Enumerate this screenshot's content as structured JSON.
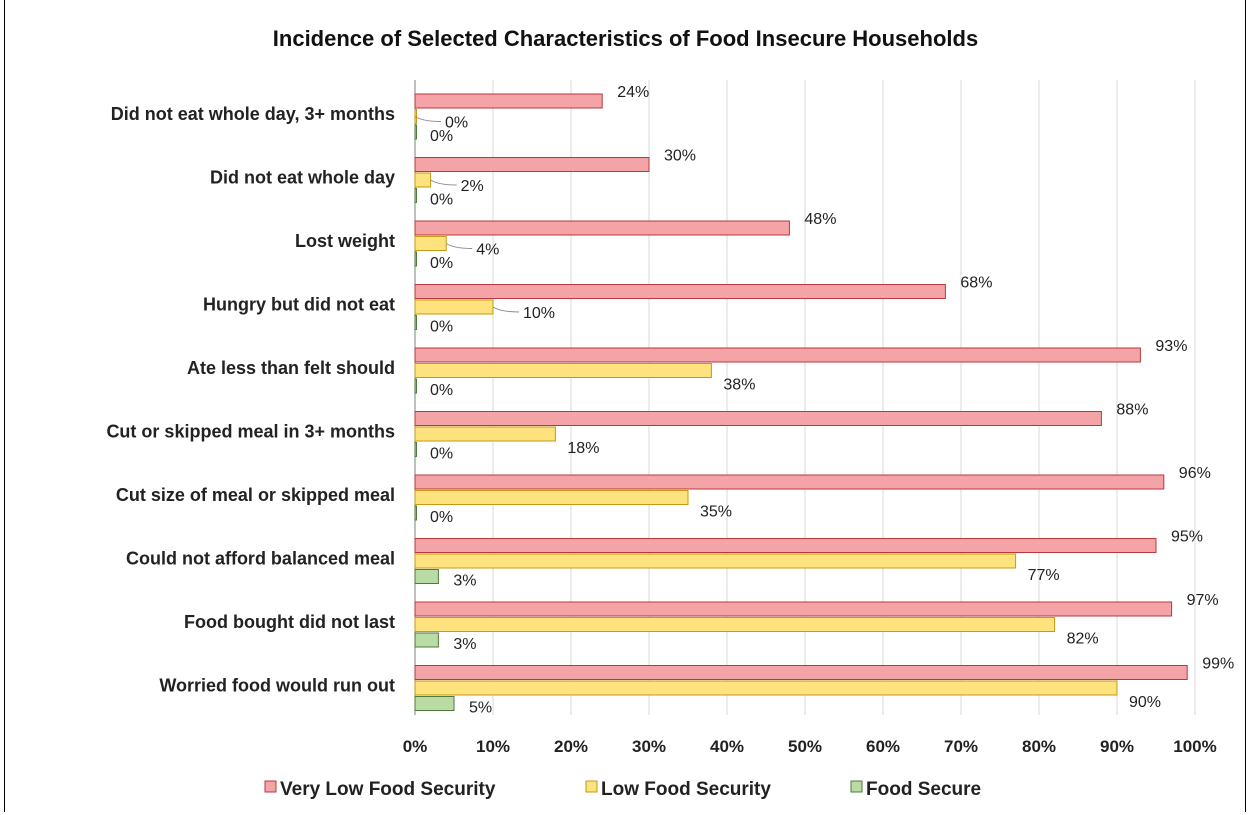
{
  "chart_data": {
    "type": "bar",
    "orientation": "horizontal",
    "title": "Incidence of Selected Characteristics of Food Insecure Households",
    "categories": [
      "Did not eat whole day, 3+ months",
      "Did not eat whole day",
      "Lost weight",
      "Hungry but did not eat",
      "Ate less than felt should",
      "Cut or skipped meal in 3+ months",
      "Cut size of meal or skipped meal",
      "Could not afford balanced meal",
      "Food bought did not last",
      "Worried food would run out"
    ],
    "series": [
      {
        "name": "Very Low Food Security",
        "color": "#f4a3a6",
        "stroke": "#b8383c",
        "values": [
          24,
          30,
          48,
          68,
          93,
          88,
          96,
          95,
          97,
          99
        ],
        "labels": [
          "24%",
          "30%",
          "48%",
          "68%",
          "93%",
          "88%",
          "96%",
          "95%",
          "97%",
          "99%"
        ]
      },
      {
        "name": "Low Food Security",
        "color": "#fde27d",
        "stroke": "#c79a15",
        "values": [
          0,
          2,
          4,
          10,
          38,
          18,
          35,
          77,
          82,
          90
        ],
        "labels": [
          "0%",
          "2%",
          "4%",
          "10%",
          "38%",
          "18%",
          "35%",
          "77%",
          "82%",
          "90%"
        ]
      },
      {
        "name": "Food Secure",
        "color": "#b9dca4",
        "stroke": "#4f7a3a",
        "values": [
          0,
          0,
          0,
          0,
          0,
          0,
          0,
          3,
          3,
          5
        ],
        "labels": [
          "0%",
          "0%",
          "0%",
          "0%",
          "0%",
          "0%",
          "0%",
          "3%",
          "3%",
          "5%"
        ]
      }
    ],
    "xlim": [
      0,
      100
    ],
    "xticks": [
      "0%",
      "10%",
      "20%",
      "30%",
      "40%",
      "50%",
      "60%",
      "70%",
      "80%",
      "90%",
      "100%"
    ],
    "grid": true,
    "legend_position": "bottom"
  }
}
